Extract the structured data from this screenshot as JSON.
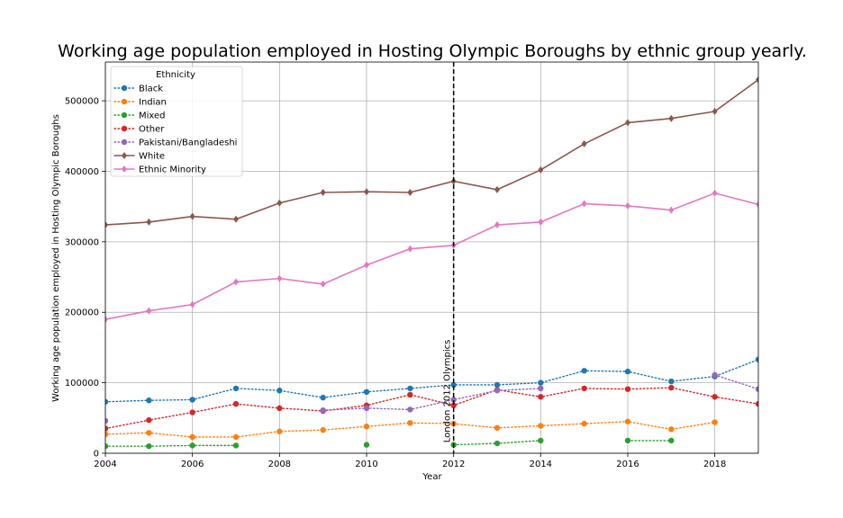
{
  "chart_data": {
    "type": "line",
    "title": "Working age population employed in Hosting Olympic Boroughs by ethnic group yearly.",
    "xlabel": "Year",
    "ylabel": "Working age population employed in Hosting Olympic Boroughs",
    "xlim": [
      2004,
      2019
    ],
    "ylim": [
      0,
      555000
    ],
    "x_ticks": [
      2004,
      2006,
      2008,
      2010,
      2012,
      2014,
      2016,
      2018
    ],
    "y_ticks": [
      0,
      100000,
      200000,
      300000,
      400000,
      500000
    ],
    "grid": true,
    "legend": {
      "title": "Ethnicity",
      "placement": "top-left"
    },
    "vline": {
      "x": 2012,
      "label": "London 2012 Olympics"
    },
    "x": [
      2004,
      2005,
      2006,
      2007,
      2008,
      2009,
      2010,
      2011,
      2012,
      2013,
      2014,
      2015,
      2016,
      2017,
      2018,
      2019
    ],
    "series": [
      {
        "name": "Black",
        "color": "#1f77b4",
        "style": "dotted",
        "marker": "circle",
        "values": [
          73000,
          75000,
          76000,
          92000,
          89000,
          79000,
          87000,
          92000,
          97000,
          97000,
          100000,
          117000,
          116000,
          102000,
          109000,
          133000
        ]
      },
      {
        "name": "Indian",
        "color": "#ff7f0e",
        "style": "dotted",
        "marker": "circle",
        "values": [
          27000,
          29000,
          23000,
          23000,
          31000,
          33000,
          38000,
          43000,
          42000,
          36000,
          39000,
          42000,
          45000,
          34000,
          44000,
          null
        ]
      },
      {
        "name": "Mixed",
        "color": "#2ca02c",
        "style": "dotted",
        "marker": "circle",
        "values": [
          10000,
          10000,
          11000,
          11000,
          null,
          null,
          12000,
          null,
          12000,
          14000,
          18000,
          null,
          18000,
          18000,
          null,
          null
        ]
      },
      {
        "name": "Other",
        "color": "#d62728",
        "style": "dotted",
        "marker": "circle",
        "values": [
          35000,
          47000,
          58000,
          70000,
          64000,
          60000,
          68000,
          83000,
          68000,
          90000,
          80000,
          92000,
          91000,
          93000,
          80000,
          70000
        ]
      },
      {
        "name": "Pakistani/Bangladeshi",
        "color": "#9467bd",
        "style": "dotted",
        "marker": "circle",
        "values": [
          46000,
          null,
          null,
          null,
          null,
          61000,
          64000,
          62000,
          76000,
          89000,
          92000,
          null,
          null,
          null,
          111000,
          91000
        ]
      },
      {
        "name": "White",
        "color": "#8c564b",
        "style": "solid",
        "marker": "diamond",
        "values": [
          324000,
          328000,
          336000,
          332000,
          355000,
          370000,
          371000,
          370000,
          386000,
          374000,
          402000,
          439000,
          469000,
          475000,
          485000,
          530000
        ]
      },
      {
        "name": "Ethnic Minority",
        "color": "#e377c2",
        "style": "solid",
        "marker": "diamond",
        "values": [
          190000,
          202000,
          211000,
          243000,
          248000,
          240000,
          267000,
          290000,
          295000,
          324000,
          328000,
          354000,
          351000,
          345000,
          369000,
          353000
        ]
      }
    ]
  }
}
